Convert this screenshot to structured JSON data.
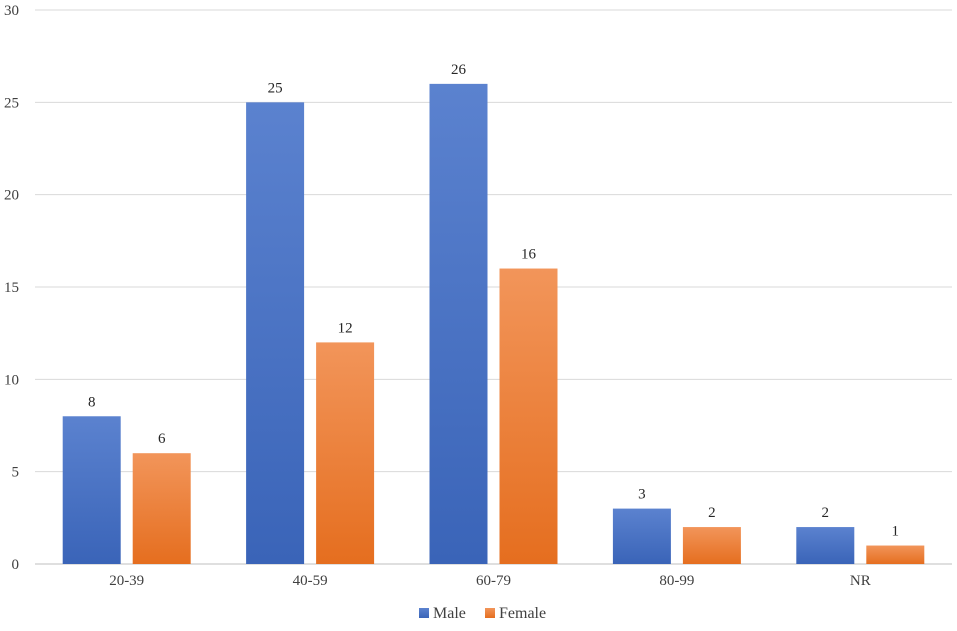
{
  "chart_data": {
    "type": "bar",
    "categories": [
      "20-39",
      "40-59",
      "60-79",
      "80-99",
      "NR"
    ],
    "series": [
      {
        "name": "Male",
        "values": [
          8,
          25,
          26,
          3,
          2
        ],
        "color": "#4472C4"
      },
      {
        "name": "Female",
        "values": [
          6,
          12,
          16,
          2,
          1
        ],
        "color": "#ED7D31"
      }
    ],
    "yticks": [
      "0",
      "5",
      "10",
      "15",
      "20",
      "25",
      "30"
    ],
    "ylim": [
      0,
      30
    ],
    "grid": true,
    "legend_position": "bottom"
  }
}
